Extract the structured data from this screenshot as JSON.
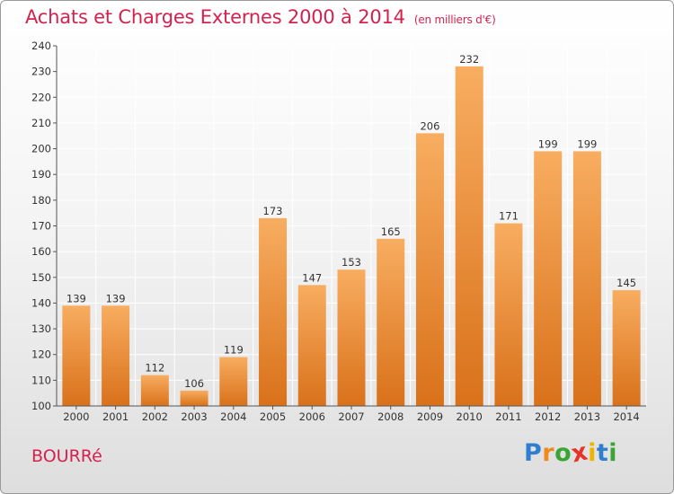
{
  "title": "Achats et Charges Externes 2000 à 2014",
  "unit_label": "(en milliers d'€)",
  "commune": "BOURRé",
  "brand": {
    "letters": [
      "P",
      "r",
      "o",
      "x",
      "i",
      "t",
      "i"
    ],
    "colors": [
      "#2f7fd1",
      "#f08a1c",
      "#3aa535",
      "#e5332a",
      "#f0b400",
      "#2f7fd1",
      "#3aa535"
    ]
  },
  "colors": {
    "title": "#d4224f",
    "bar_light": "#f8ad60",
    "bar_dark": "#d9711a",
    "grid": "#ffffff",
    "axis": "#555555"
  },
  "chart_data": {
    "type": "bar",
    "categories": [
      "2000",
      "2001",
      "2002",
      "2003",
      "2004",
      "2005",
      "2006",
      "2007",
      "2008",
      "2009",
      "2010",
      "2011",
      "2012",
      "2013",
      "2014"
    ],
    "values": [
      139,
      139,
      112,
      106,
      119,
      173,
      147,
      153,
      165,
      206,
      232,
      171,
      199,
      199,
      145
    ],
    "ylim": [
      100,
      240
    ],
    "yticks": [
      100,
      110,
      120,
      130,
      140,
      150,
      160,
      170,
      180,
      190,
      200,
      210,
      220,
      230,
      240
    ],
    "grid": true,
    "legend": "none"
  }
}
